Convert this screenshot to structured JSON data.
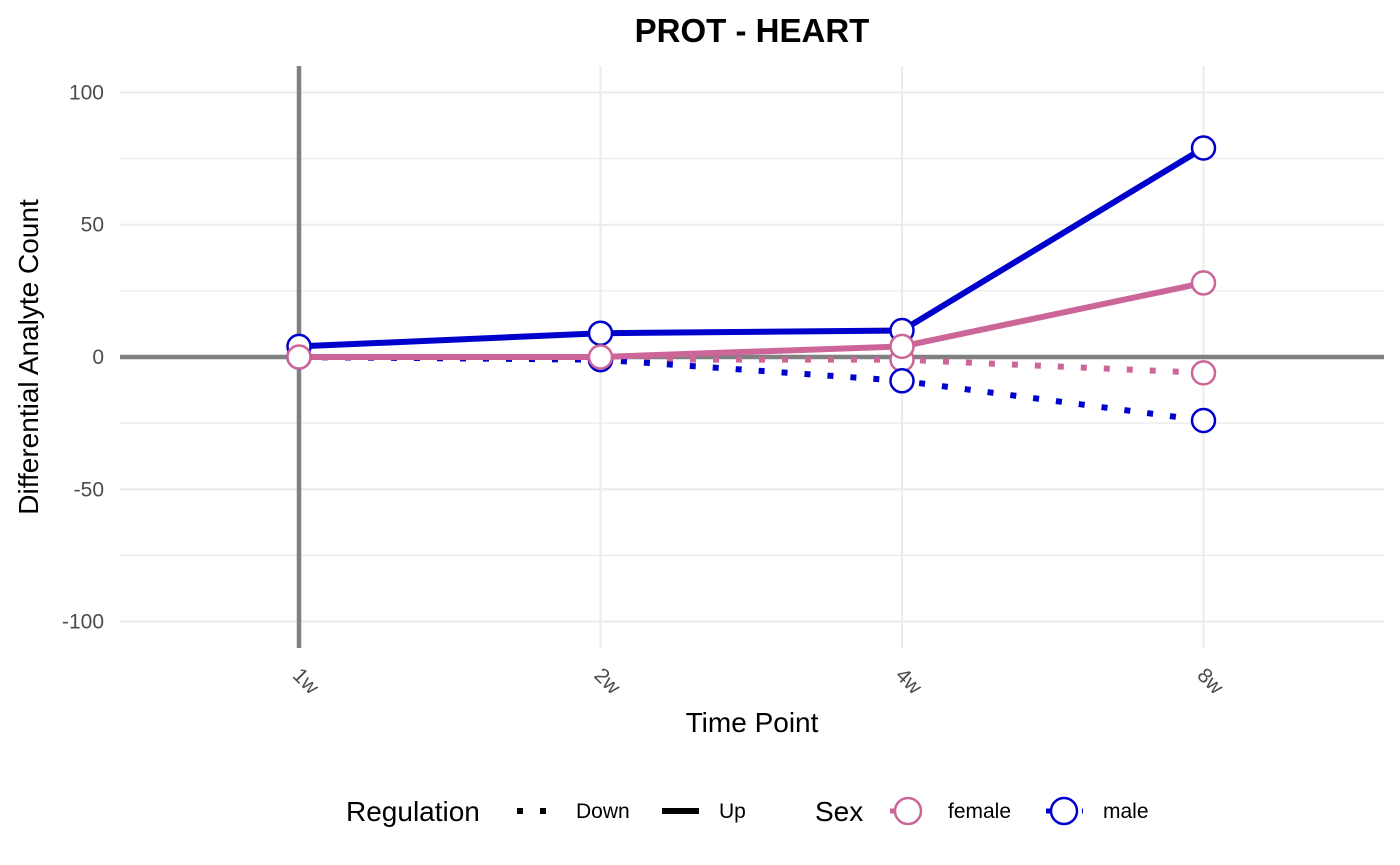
{
  "chart_data": {
    "type": "line",
    "title": "PROT - HEART",
    "xlabel": "Time Point",
    "ylabel": "Differential Analyte Count",
    "categories": [
      "1w",
      "2w",
      "4w",
      "8w"
    ],
    "ylim": [
      -110,
      110
    ],
    "yticks": [
      100,
      50,
      0,
      -50,
      -100
    ],
    "ytick_labels": [
      "100",
      "50",
      "0",
      "-50",
      "-100"
    ],
    "grid": true,
    "legend_position": "bottom",
    "legend": {
      "regulation": {
        "title": "Regulation",
        "items": [
          "Down",
          "Up"
        ]
      },
      "sex": {
        "title": "Sex",
        "items": [
          "female",
          "male"
        ]
      }
    },
    "colors": {
      "female": "#cc6699",
      "male": "#0000cc",
      "axis_line": "#808080",
      "grid": "#ebebeb"
    },
    "series": [
      {
        "name": "male",
        "regulation": "Up",
        "sex": "male",
        "values": [
          4,
          9,
          10,
          79
        ]
      },
      {
        "name": "female",
        "regulation": "Up",
        "sex": "female",
        "values": [
          0,
          0,
          4,
          28
        ]
      },
      {
        "name": "female",
        "regulation": "Down",
        "sex": "female",
        "values": [
          0,
          -1,
          -1,
          -6
        ]
      },
      {
        "name": "male",
        "regulation": "Down",
        "sex": "male",
        "values": [
          0,
          -1,
          -9,
          -24
        ]
      }
    ]
  }
}
